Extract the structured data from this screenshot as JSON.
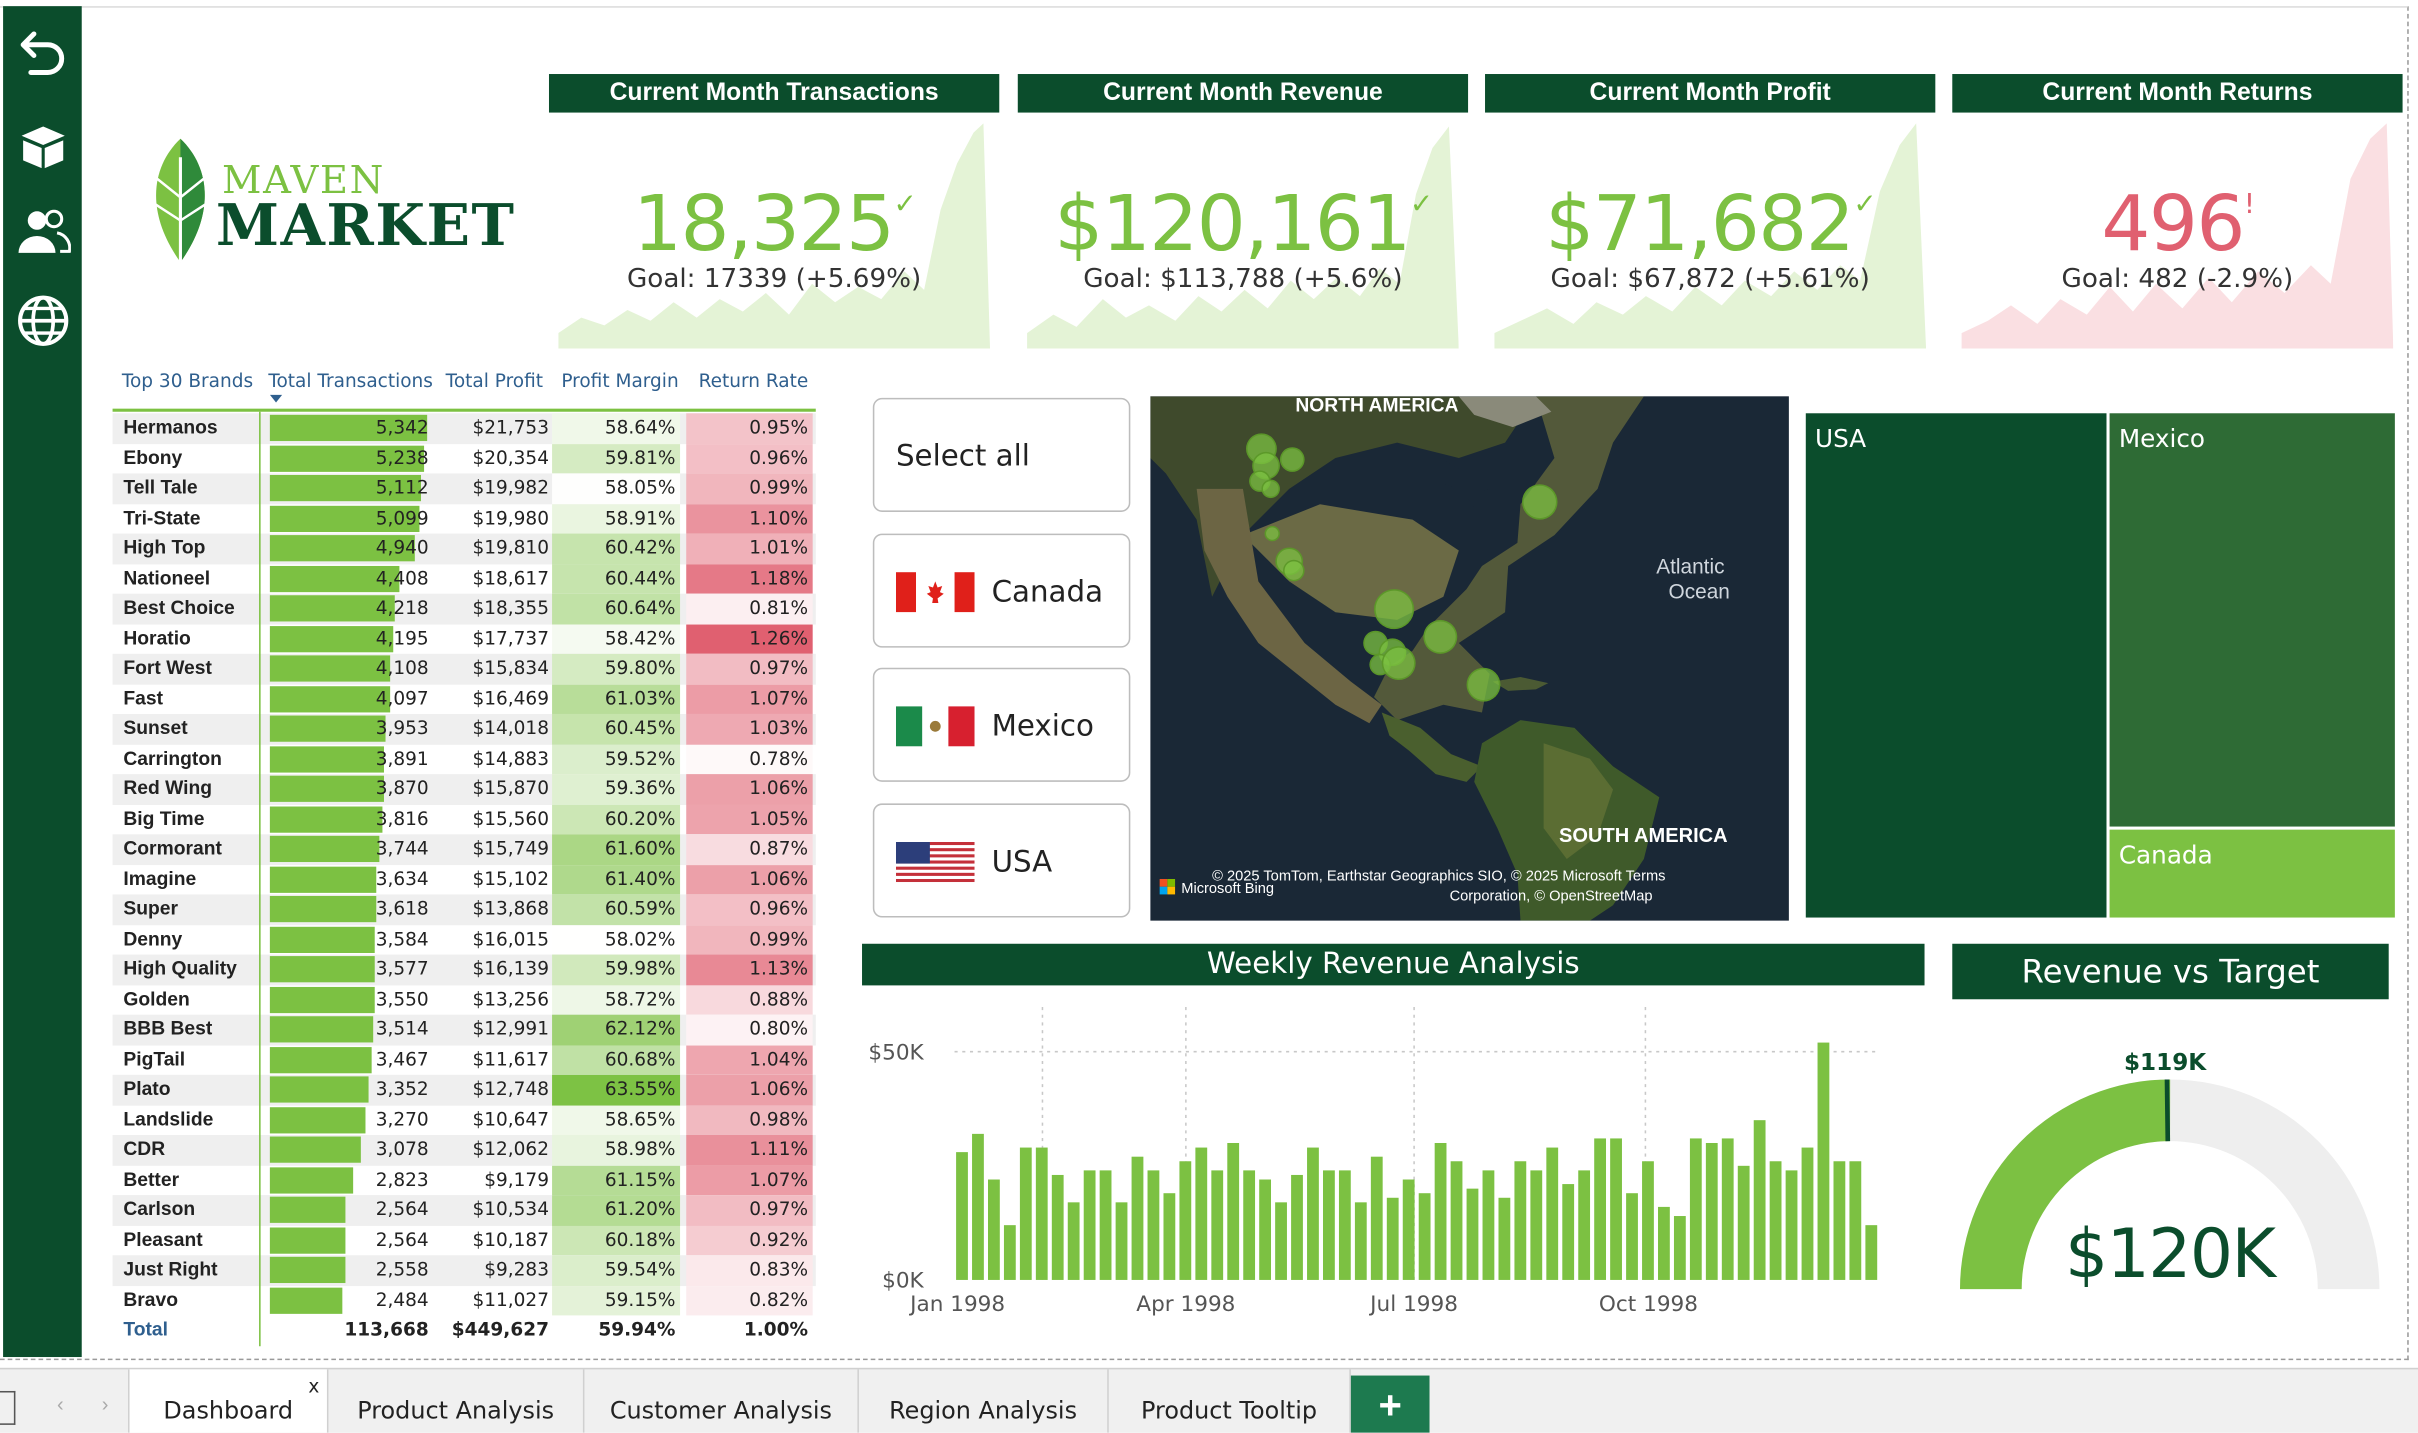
{
  "kpis": [
    {
      "title": "Current Month Transactions",
      "value": "18,325",
      "goal": "Goal: 17339 (+5.69%)",
      "status": "up"
    },
    {
      "title": "Current Month Revenue",
      "value": "$120,161",
      "goal": "Goal: $113,788 (+5.6%)",
      "status": "up"
    },
    {
      "title": "Current Month Profit",
      "value": "$71,682",
      "goal": "Goal: $67,872 (+5.61%)",
      "status": "up"
    },
    {
      "title": "Current Month Returns",
      "value": "496",
      "goal": "Goal: 482 (-2.9%)",
      "status": "alert"
    }
  ],
  "colors": {
    "dark_green": "#0b4d2c",
    "light_green": "#7cc142",
    "alert_red": "#e06070"
  },
  "logo": {
    "line1": "MAVEN",
    "line2": "MARKET"
  },
  "sidebar": {
    "icons": [
      "back-arrow-icon",
      "product-box-icon",
      "customers-icon",
      "globe-icon"
    ]
  },
  "table": {
    "headers": [
      "Top 30 Brands",
      "Total Transactions",
      "Total Profit",
      "Profit Margin",
      "Return Rate"
    ],
    "rows": [
      [
        "Hermanos",
        "5,342",
        "$21,753",
        "58.64%",
        "0.95%"
      ],
      [
        "Ebony",
        "5,238",
        "$20,354",
        "59.81%",
        "0.96%"
      ],
      [
        "Tell Tale",
        "5,112",
        "$19,982",
        "58.05%",
        "0.99%"
      ],
      [
        "Tri-State",
        "5,099",
        "$19,980",
        "58.91%",
        "1.10%"
      ],
      [
        "High Top",
        "4,940",
        "$19,810",
        "60.42%",
        "1.01%"
      ],
      [
        "Nationeel",
        "4,408",
        "$18,617",
        "60.44%",
        "1.18%"
      ],
      [
        "Best Choice",
        "4,218",
        "$18,355",
        "60.64%",
        "0.81%"
      ],
      [
        "Horatio",
        "4,195",
        "$17,737",
        "58.42%",
        "1.26%"
      ],
      [
        "Fort West",
        "4,108",
        "$15,834",
        "59.80%",
        "0.97%"
      ],
      [
        "Fast",
        "4,097",
        "$16,469",
        "61.03%",
        "1.07%"
      ],
      [
        "Sunset",
        "3,953",
        "$14,018",
        "60.45%",
        "1.03%"
      ],
      [
        "Carrington",
        "3,891",
        "$14,883",
        "59.52%",
        "0.78%"
      ],
      [
        "Red Wing",
        "3,870",
        "$15,870",
        "59.36%",
        "1.06%"
      ],
      [
        "Big Time",
        "3,816",
        "$15,560",
        "60.20%",
        "1.05%"
      ],
      [
        "Cormorant",
        "3,744",
        "$15,749",
        "61.60%",
        "0.87%"
      ],
      [
        "Imagine",
        "3,634",
        "$15,102",
        "61.40%",
        "1.06%"
      ],
      [
        "Super",
        "3,618",
        "$13,868",
        "60.59%",
        "0.96%"
      ],
      [
        "Denny",
        "3,584",
        "$16,015",
        "58.02%",
        "0.99%"
      ],
      [
        "High Quality",
        "3,577",
        "$16,139",
        "59.98%",
        "1.13%"
      ],
      [
        "Golden",
        "3,550",
        "$13,256",
        "58.72%",
        "0.88%"
      ],
      [
        "BBB Best",
        "3,514",
        "$12,991",
        "62.12%",
        "0.80%"
      ],
      [
        "PigTail",
        "3,467",
        "$11,617",
        "60.68%",
        "1.04%"
      ],
      [
        "Plato",
        "3,352",
        "$12,748",
        "63.55%",
        "1.06%"
      ],
      [
        "Landslide",
        "3,270",
        "$10,647",
        "58.65%",
        "0.98%"
      ],
      [
        "CDR",
        "3,078",
        "$12,062",
        "58.98%",
        "1.11%"
      ],
      [
        "Better",
        "2,823",
        "$9,179",
        "61.15%",
        "1.07%"
      ],
      [
        "Carlson",
        "2,564",
        "$10,534",
        "61.20%",
        "0.97%"
      ],
      [
        "Pleasant",
        "2,564",
        "$10,187",
        "60.18%",
        "0.92%"
      ],
      [
        "Just Right",
        "2,558",
        "$9,283",
        "59.54%",
        "0.83%"
      ],
      [
        "Bravo",
        "2,484",
        "$11,027",
        "59.15%",
        "0.82%"
      ]
    ],
    "total": [
      "Total",
      "113,668",
      "$449,627",
      "59.94%",
      "1.00%"
    ]
  },
  "slicer": {
    "items": [
      "Select all",
      "Canada",
      "Mexico",
      "USA"
    ]
  },
  "map": {
    "labels": {
      "na": "NORTH AMERICA",
      "sa": "SOUTH AMERICA",
      "ocean1": "Atlantic",
      "ocean2": "Ocean"
    },
    "attribution": "© 2025 TomTom, Earthstar Geographics SIO, © 2025 Microsoft  Terms",
    "attribution2": "Corporation, © OpenStreetMap",
    "bing": "Microsoft Bing"
  },
  "treemap": {
    "items": [
      "USA",
      "Mexico",
      "Canada"
    ]
  },
  "weekly": {
    "title": "Weekly Revenue Analysis"
  },
  "gauge": {
    "title": "Revenue vs Target",
    "target_label": "$119K",
    "value_label": "$120K",
    "value": 120161,
    "target": 119000,
    "max": 240000
  },
  "tabs": {
    "items": [
      "Dashboard",
      "Product Analysis",
      "Customer Analysis",
      "Region Analysis",
      "Product Tooltip"
    ],
    "close": "x",
    "add": "+"
  },
  "chart_data": [
    {
      "type": "bar",
      "title": "Weekly Revenue Analysis",
      "xlabel": "",
      "ylabel": "",
      "ylim": [
        0,
        50000
      ],
      "yticks": [
        "$0K",
        "$50K"
      ],
      "xticks": [
        "Jan 1998",
        "Apr 1998",
        "Jul 1998",
        "Oct 1998"
      ],
      "values": [
        28000,
        32000,
        22000,
        12000,
        29000,
        29000,
        23000,
        17000,
        24000,
        24000,
        17000,
        27000,
        24000,
        19000,
        26000,
        29000,
        24000,
        30000,
        24000,
        22000,
        17000,
        23000,
        29000,
        24000,
        24000,
        17000,
        27000,
        18000,
        22000,
        19000,
        30000,
        26000,
        20000,
        24000,
        18000,
        26000,
        24000,
        29000,
        21000,
        24000,
        31000,
        31000,
        19000,
        26000,
        16000,
        14000,
        31000,
        30000,
        31000,
        25000,
        35000,
        26000,
        24000,
        29000,
        52000,
        26000,
        26000,
        12000
      ]
    },
    {
      "type": "gauge",
      "title": "Revenue vs Target",
      "value": 120161,
      "target": 119000
    }
  ]
}
